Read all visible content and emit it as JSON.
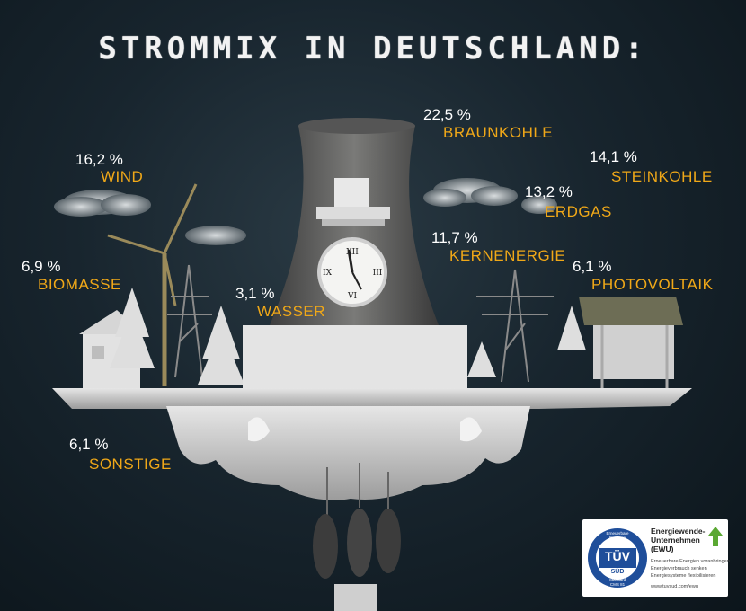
{
  "chart_data": {
    "type": "pie",
    "title": "STROMMIX IN DEUTSCHLAND:",
    "slices": [
      {
        "label": "BRAUNKOHLE",
        "value_text": "22,5 %",
        "value": 22.5
      },
      {
        "label": "WIND",
        "value_text": "16,2 %",
        "value": 16.2
      },
      {
        "label": "STEINKOHLE",
        "value_text": "14,1 %",
        "value": 14.1
      },
      {
        "label": "ERDGAS",
        "value_text": "13,2 %",
        "value": 13.2
      },
      {
        "label": "KERNENERGIE",
        "value_text": "11,7 %",
        "value": 11.7
      },
      {
        "label": "BIOMASSE",
        "value_text": "6,9 %",
        "value": 6.9
      },
      {
        "label": "PHOTOVOLTAIK",
        "value_text": "6,1 %",
        "value": 6.1
      },
      {
        "label": "WASSER",
        "value_text": "3,1 %",
        "value": 3.1
      },
      {
        "label": "SONSTIGE",
        "value_text": "6,1 %",
        "value": 6.1
      }
    ],
    "colors": {
      "label": "#f0a818",
      "value": "#ffffff",
      "background": "#18252e"
    }
  },
  "badge": {
    "tuv_line1": "Erneuerbare",
    "tuv_line2": "Energien",
    "tuv_text": "TÜV",
    "tuv_sub": "SÜD",
    "tuv_bottom1": "Standard",
    "tuv_bottom2": "CMS 81",
    "title": "Energiewende-Unternehmen (EWU)",
    "line1": "Erneuerbare Energien voranbringen",
    "line2": "Energieverbrauch senken",
    "line3": "Energiesysteme flexibilisieren",
    "url": "www.tuvsud.com/ewu"
  }
}
